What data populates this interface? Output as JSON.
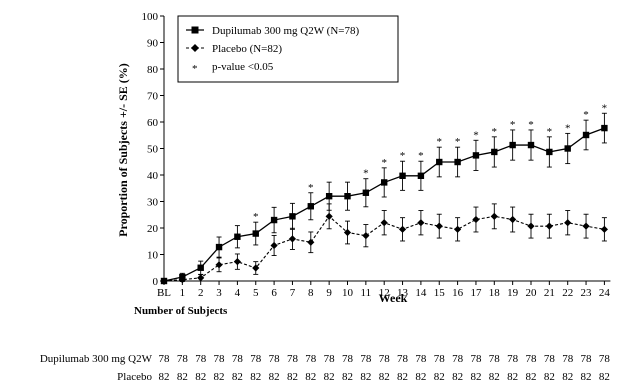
{
  "chart_data": {
    "type": "line",
    "title": "",
    "xlabel": "Week",
    "ylabel": "Proportion of Subjects +/- SE (%)",
    "ylim": [
      0,
      100
    ],
    "yticks": [
      0,
      10,
      20,
      30,
      40,
      50,
      60,
      70,
      80,
      90,
      100
    ],
    "categories": [
      "BL",
      "1",
      "2",
      "3",
      "4",
      "5",
      "6",
      "7",
      "8",
      "9",
      "10",
      "11",
      "12",
      "13",
      "14",
      "15",
      "16",
      "17",
      "18",
      "19",
      "20",
      "21",
      "22",
      "23",
      "24"
    ],
    "grid": false,
    "legend_position": "top-left",
    "series": [
      {
        "name": "Dupilumab 300 mg Q2W (N=78)",
        "marker": "square",
        "linestyle": "solid",
        "values": [
          0,
          1.5,
          5,
          12.8,
          16.7,
          17.9,
          23,
          24.4,
          28.2,
          32,
          32,
          33.3,
          37.2,
          39.7,
          39.7,
          44.9,
          44.9,
          47.4,
          48.7,
          51.3,
          51.3,
          48.7,
          50,
          55.1,
          57.7
        ],
        "se": [
          0,
          1.4,
          2.5,
          3.8,
          4.2,
          4.3,
          4.8,
          4.9,
          5.1,
          5.3,
          5.3,
          5.3,
          5.5,
          5.5,
          5.5,
          5.6,
          5.6,
          5.7,
          5.7,
          5.7,
          5.7,
          5.7,
          5.7,
          5.6,
          5.6
        ]
      },
      {
        "name": "Placebo (N=82)",
        "marker": "diamond",
        "linestyle": "dashed",
        "values": [
          0,
          0.5,
          1.2,
          6.1,
          7.3,
          4.9,
          13.4,
          15.9,
          14.6,
          24.4,
          18.3,
          17.1,
          22,
          19.5,
          22,
          20.7,
          19.5,
          23.2,
          24.4,
          23.2,
          20.7,
          20.7,
          22,
          20.7,
          19.5
        ],
        "se": [
          0,
          0.7,
          1.2,
          2.6,
          2.9,
          2.4,
          3.8,
          4,
          3.9,
          4.7,
          4.3,
          4.2,
          4.6,
          4.4,
          4.6,
          4.5,
          4.4,
          4.7,
          4.7,
          4.7,
          4.5,
          4.5,
          4.6,
          4.5,
          4.4
        ]
      }
    ],
    "significance_marker": "*",
    "significance_label": "p-value <0.05",
    "significant_weeks": [
      "5",
      "8",
      "11",
      "12",
      "13",
      "14",
      "15",
      "16",
      "17",
      "18",
      "19",
      "20",
      "21",
      "22",
      "23",
      "24"
    ]
  },
  "number_of_subjects": {
    "title": "Number of Subjects",
    "rows": [
      {
        "label": "Dupilumab 300 mg Q2W",
        "counts": [
          "78",
          "78",
          "78",
          "78",
          "78",
          "78",
          "78",
          "78",
          "78",
          "78",
          "78",
          "78",
          "78",
          "78",
          "78",
          "78",
          "78",
          "78",
          "78",
          "78",
          "78",
          "78",
          "78",
          "78",
          "78"
        ]
      },
      {
        "label": "Placebo",
        "counts": [
          "82",
          "82",
          "82",
          "82",
          "82",
          "82",
          "82",
          "82",
          "82",
          "82",
          "82",
          "82",
          "82",
          "82",
          "82",
          "82",
          "82",
          "82",
          "82",
          "82",
          "82",
          "82",
          "82",
          "82",
          "82"
        ]
      }
    ]
  }
}
